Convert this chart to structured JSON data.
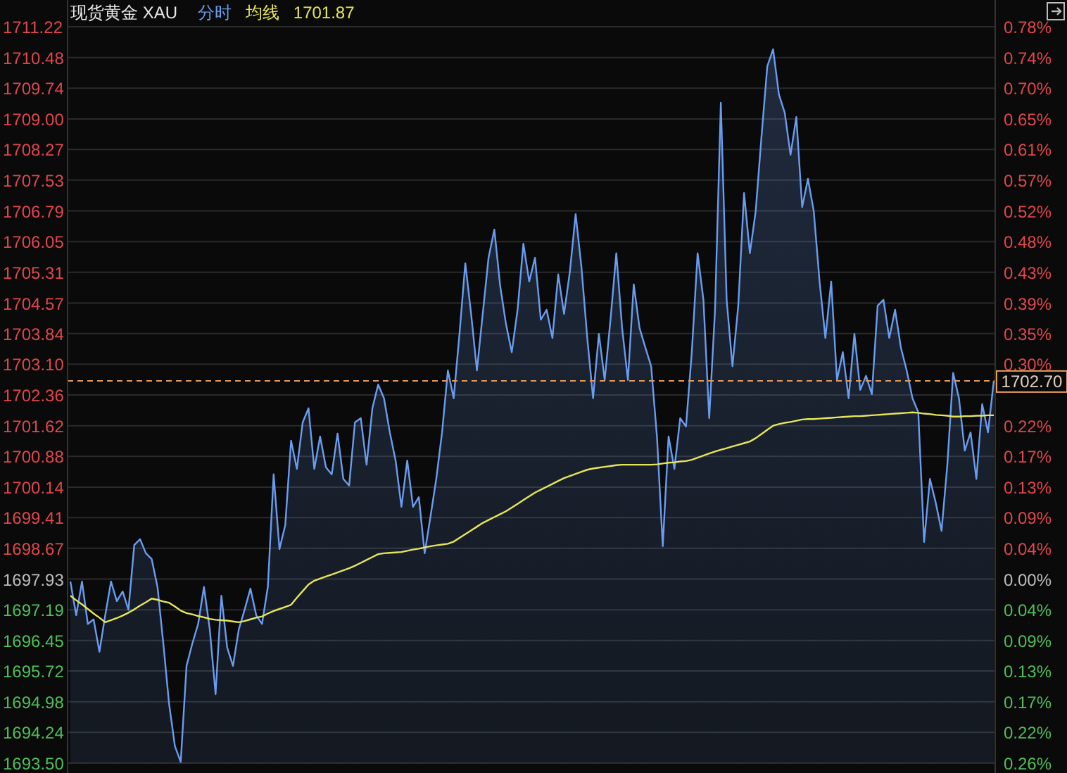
{
  "chart_data": {
    "type": "area",
    "title": "现货黄金 XAU",
    "grid": "y",
    "tick_labels": "y",
    "annotations": [
      "1701.87"
    ],
    "categories": [
      null,
      null,
      null,
      null,
      null,
      null,
      null,
      null,
      null,
      null,
      null,
      null,
      null,
      null,
      null,
      null,
      null,
      null,
      null,
      null,
      null,
      null,
      null,
      null,
      null,
      null,
      null,
      null,
      null,
      null,
      null,
      null,
      null,
      null,
      null,
      null,
      null,
      null,
      null,
      null,
      null,
      null,
      null,
      null,
      null,
      null,
      null,
      null,
      null,
      null,
      null,
      null,
      null,
      null,
      null,
      null,
      null,
      null,
      null,
      null,
      null,
      null,
      null,
      null,
      null,
      null,
      null,
      null,
      null,
      null,
      null,
      null,
      null,
      null,
      null,
      null,
      null,
      null,
      null,
      null,
      null,
      null,
      null,
      null,
      null,
      null,
      null,
      null,
      null,
      null,
      null,
      null,
      null,
      null,
      null,
      null,
      null,
      null,
      null,
      null,
      null,
      null,
      null,
      null,
      null,
      null,
      null,
      null,
      null,
      null,
      null,
      null,
      null,
      null,
      null,
      null,
      null,
      null,
      null,
      null,
      null,
      null,
      null,
      null,
      null,
      null,
      null,
      null,
      null,
      null,
      null,
      null,
      null,
      null,
      null,
      null,
      null,
      null,
      null,
      null,
      null,
      null,
      null,
      null,
      null,
      null,
      null,
      null,
      null,
      null,
      null,
      null,
      null,
      null,
      null,
      null,
      null,
      null,
      null,
      null
    ],
    "ylim": [
      1693.5,
      1711.22
    ],
    "yticks": [
      {
        "value": 1693.5,
        "label": "1693.50"
      },
      {
        "value": 1694.24,
        "label": "1694.24"
      },
      {
        "value": 1694.98,
        "label": "1694.98"
      },
      {
        "value": 1695.72,
        "label": "1695.72"
      },
      {
        "value": 1696.45,
        "label": "1696.45"
      },
      {
        "value": 1697.19,
        "label": "1697.19"
      },
      {
        "value": 1697.93,
        "label": "1697.93"
      },
      {
        "value": 1698.67,
        "label": "1698.67"
      },
      {
        "value": 1699.41,
        "label": "1699.41"
      },
      {
        "value": 1700.14,
        "label": "1700.14"
      },
      {
        "value": 1700.88,
        "label": "1700.88"
      },
      {
        "value": 1701.62,
        "label": "1701.62"
      },
      {
        "value": 1702.36,
        "label": "1702.36"
      },
      {
        "value": 1703.1,
        "label": "1703.10"
      },
      {
        "value": 1703.84,
        "label": "1703.84"
      },
      {
        "value": 1704.57,
        "label": "1704.57"
      },
      {
        "value": 1705.31,
        "label": "1705.31"
      },
      {
        "value": 1706.05,
        "label": "1706.05"
      },
      {
        "value": 1706.79,
        "label": "1706.79"
      },
      {
        "value": 1707.53,
        "label": "1707.53"
      },
      {
        "value": 1708.27,
        "label": "1708.27"
      },
      {
        "value": 1709,
        "label": "1709.00"
      },
      {
        "value": 1709.74,
        "label": "1709.74"
      },
      {
        "value": 1710.48,
        "label": "1710.48"
      },
      {
        "value": 1711.22,
        "label": "1711.22"
      }
    ],
    "y2lim": [
      -0.2609,
      0.7827
    ],
    "y2ticks": [
      {
        "value": -0.2609,
        "label": "0.26%"
      },
      {
        "value": -0.2173,
        "label": "0.22%"
      },
      {
        "value": -0.1737,
        "label": "0.17%"
      },
      {
        "value": -0.1302,
        "label": "0.13%"
      },
      {
        "value": -0.0872,
        "label": "0.09%"
      },
      {
        "value": -0.0436,
        "label": "0.04%"
      },
      {
        "value": 0,
        "label": "0.00%"
      },
      {
        "value": 0.0436,
        "label": "0.04%"
      },
      {
        "value": 0.0872,
        "label": "0.09%"
      },
      {
        "value": 0.1302,
        "label": "0.13%"
      },
      {
        "value": 0.1737,
        "label": "0.17%"
      },
      {
        "value": 0.2173,
        "label": "0.22%"
      },
      {
        "value": 0.3045,
        "label": "0.30%"
      },
      {
        "value": 0.3481,
        "label": "0.35%"
      },
      {
        "value": 0.3911,
        "label": "0.39%"
      },
      {
        "value": 0.4346,
        "label": "0.43%"
      },
      {
        "value": 0.4782,
        "label": "0.48%"
      },
      {
        "value": 0.5218,
        "label": "0.52%"
      },
      {
        "value": 0.5654,
        "label": "0.57%"
      },
      {
        "value": 0.609,
        "label": "0.61%"
      },
      {
        "value": 0.652,
        "label": "0.65%"
      },
      {
        "value": 0.6956,
        "label": "0.70%"
      },
      {
        "value": 0.7391,
        "label": "0.74%"
      },
      {
        "value": 0.7827,
        "label": "0.78%"
      }
    ],
    "ref_lines": [
      {
        "axis": "y",
        "value": 1702.7,
        "label": "1702.70",
        "color": "#e39a5a",
        "line_style": "dashed"
      }
    ],
    "series": [
      {
        "name": "分时",
        "color": "#6a9cf0",
        "values": [
          1697.87,
          1697.06,
          1697.87,
          1696.85,
          1696.96,
          1696.18,
          1697.06,
          1697.87,
          1697.4,
          1697.63,
          1697.19,
          1698.75,
          1698.89,
          1698.55,
          1698.41,
          1697.74,
          1696.38,
          1694.92,
          1693.91,
          1693.53,
          1695.84,
          1696.38,
          1696.85,
          1697.74,
          1696.72,
          1695.16,
          1697.53,
          1696.28,
          1695.84,
          1696.72,
          1697.19,
          1697.7,
          1697.06,
          1696.85,
          1697.74,
          1700.45,
          1698.65,
          1699.23,
          1701.26,
          1700.58,
          1701.7,
          1702.04,
          1700.58,
          1701.36,
          1700.62,
          1700.45,
          1701.43,
          1700.34,
          1700.18,
          1701.7,
          1701.8,
          1700.68,
          1702.04,
          1702.61,
          1702.28,
          1701.46,
          1700.78,
          1699.67,
          1700.78,
          1699.67,
          1699.9,
          1698.55,
          1699.43,
          1700.34,
          1701.46,
          1702.95,
          1702.28,
          1703.83,
          1705.53,
          1704.31,
          1702.95,
          1704.31,
          1705.66,
          1706.34,
          1704.99,
          1704.07,
          1703.39,
          1704.41,
          1706,
          1705.09,
          1705.66,
          1704.17,
          1704.41,
          1703.73,
          1705.26,
          1704.31,
          1705.32,
          1706.71,
          1705.43,
          1703.73,
          1702.28,
          1703.83,
          1702.72,
          1704.17,
          1705.77,
          1703.97,
          1702.72,
          1705.02,
          1703.97,
          1703.5,
          1703.05,
          1701.36,
          1698.72,
          1701.36,
          1700.58,
          1701.8,
          1701.6,
          1703.39,
          1705.77,
          1704.65,
          1701.8,
          1704.41,
          1709.39,
          1704.65,
          1703.05,
          1704.51,
          1707.22,
          1705.77,
          1706.78,
          1708.58,
          1710.27,
          1710.68,
          1709.59,
          1709.15,
          1708.14,
          1709.05,
          1706.88,
          1707.56,
          1706.78,
          1705.09,
          1703.73,
          1705.09,
          1702.72,
          1703.39,
          1702.28,
          1703.83,
          1702.48,
          1702.82,
          1702.38,
          1704.51,
          1704.65,
          1703.73,
          1704.41,
          1703.5,
          1702.95,
          1702.28,
          1701.94,
          1698.82,
          1700.34,
          1699.77,
          1699.09,
          1700.68,
          1702.89,
          1702.28,
          1701.02,
          1701.46,
          1700.34,
          1702.14,
          1701.46,
          1702.7
        ]
      },
      {
        "name": "均线",
        "type": "line",
        "color": "#e6e65a",
        "values": [
          1697.53,
          1697.42,
          1697.32,
          1697.21,
          1697.1,
          1697,
          1696.89,
          1696.94,
          1696.99,
          1697.05,
          1697.12,
          1697.2,
          1697.29,
          1697.37,
          1697.46,
          1697.43,
          1697.39,
          1697.36,
          1697.27,
          1697.17,
          1697.11,
          1697.08,
          1697.04,
          1697.01,
          1696.97,
          1696.95,
          1696.94,
          1696.93,
          1696.91,
          1696.89,
          1696.92,
          1696.96,
          1697,
          1697.03,
          1697.1,
          1697.16,
          1697.21,
          1697.26,
          1697.31,
          1697.48,
          1697.64,
          1697.8,
          1697.89,
          1697.94,
          1697.99,
          1698.04,
          1698.09,
          1698.14,
          1698.19,
          1698.25,
          1698.32,
          1698.39,
          1698.46,
          1698.53,
          1698.55,
          1698.56,
          1698.57,
          1698.58,
          1698.61,
          1698.64,
          1698.66,
          1698.69,
          1698.72,
          1698.74,
          1698.76,
          1698.78,
          1698.83,
          1698.92,
          1699.01,
          1699.1,
          1699.19,
          1699.28,
          1699.35,
          1699.42,
          1699.49,
          1699.56,
          1699.65,
          1699.74,
          1699.83,
          1699.92,
          1700.01,
          1700.08,
          1700.15,
          1700.22,
          1700.29,
          1700.36,
          1700.41,
          1700.46,
          1700.51,
          1700.56,
          1700.59,
          1700.61,
          1700.63,
          1700.65,
          1700.67,
          1700.68,
          1700.68,
          1700.68,
          1700.68,
          1700.68,
          1700.68,
          1700.69,
          1700.71,
          1700.73,
          1700.74,
          1700.76,
          1700.77,
          1700.8,
          1700.85,
          1700.9,
          1700.95,
          1701,
          1701.04,
          1701.08,
          1701.12,
          1701.16,
          1701.2,
          1701.24,
          1701.32,
          1701.42,
          1701.52,
          1701.62,
          1701.66,
          1701.69,
          1701.71,
          1701.74,
          1701.77,
          1701.78,
          1701.78,
          1701.79,
          1701.8,
          1701.81,
          1701.82,
          1701.83,
          1701.84,
          1701.85,
          1701.85,
          1701.86,
          1701.87,
          1701.88,
          1701.89,
          1701.9,
          1701.91,
          1701.92,
          1701.93,
          1701.94,
          1701.93,
          1701.91,
          1701.9,
          1701.88,
          1701.87,
          1701.86,
          1701.84,
          1701.84,
          1701.85,
          1701.85,
          1701.86,
          1701.86,
          1701.87,
          1701.87
        ]
      }
    ]
  }
}
